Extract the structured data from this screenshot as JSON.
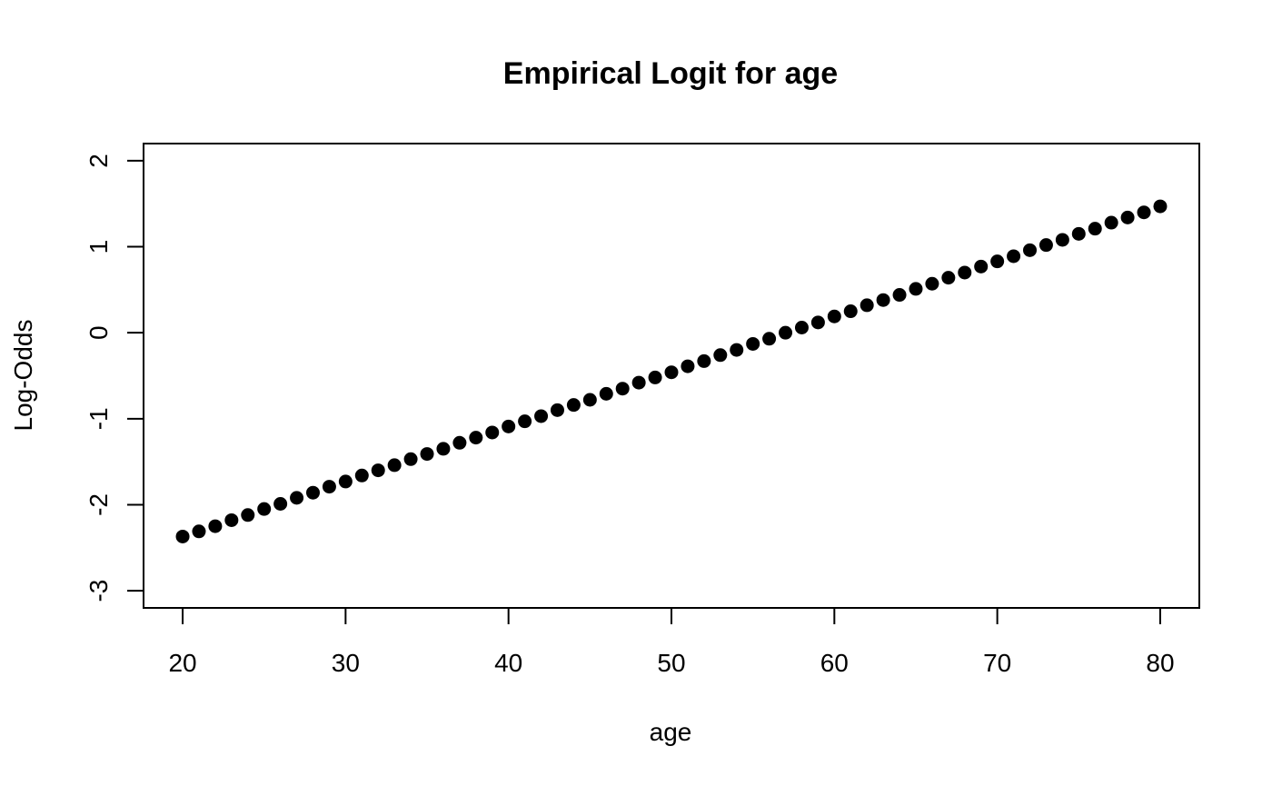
{
  "chart_data": {
    "type": "scatter",
    "title": "Empirical Logit for age",
    "xlabel": "age",
    "ylabel": "Log-Odds",
    "xlim": [
      17.6,
      82.4
    ],
    "ylim": [
      -3.2,
      2.2
    ],
    "x_ticks": [
      20,
      30,
      40,
      50,
      60,
      70,
      80
    ],
    "x_tick_labels": [
      "20",
      "30",
      "40",
      "50",
      "60",
      "70",
      "80"
    ],
    "y_ticks": [
      -3,
      -2,
      -1,
      0,
      1,
      2
    ],
    "y_tick_labels": [
      "-3",
      "-2",
      "-1",
      "0",
      "1",
      "2"
    ],
    "grid": false,
    "legend": "none",
    "marker_color": "#000000",
    "series": [
      {
        "x": [
          20,
          21,
          22,
          23,
          24,
          25,
          26,
          27,
          28,
          29,
          30,
          31,
          32,
          33,
          34,
          35,
          36,
          37,
          38,
          39,
          40,
          41,
          42,
          43,
          44,
          45,
          46,
          47,
          48,
          49,
          50,
          51,
          52,
          53,
          54,
          55,
          56,
          57,
          58,
          59,
          60,
          61,
          62,
          63,
          64,
          65,
          66,
          67,
          68,
          69,
          70,
          71,
          72,
          73,
          74,
          75,
          76,
          77,
          78,
          79,
          80
        ],
        "y": [
          -2.37,
          -2.31,
          -2.25,
          -2.18,
          -2.12,
          -2.05,
          -1.99,
          -1.92,
          -1.86,
          -1.79,
          -1.73,
          -1.66,
          -1.6,
          -1.54,
          -1.47,
          -1.41,
          -1.35,
          -1.28,
          -1.22,
          -1.16,
          -1.09,
          -1.03,
          -0.97,
          -0.9,
          -0.84,
          -0.78,
          -0.71,
          -0.65,
          -0.58,
          -0.52,
          -0.46,
          -0.39,
          -0.33,
          -0.26,
          -0.2,
          -0.13,
          -0.07,
          0.0,
          0.06,
          0.12,
          0.19,
          0.25,
          0.32,
          0.38,
          0.44,
          0.51,
          0.57,
          0.64,
          0.7,
          0.77,
          0.83,
          0.89,
          0.96,
          1.02,
          1.08,
          1.15,
          1.21,
          1.28,
          1.34,
          1.4,
          1.47
        ]
      }
    ]
  }
}
